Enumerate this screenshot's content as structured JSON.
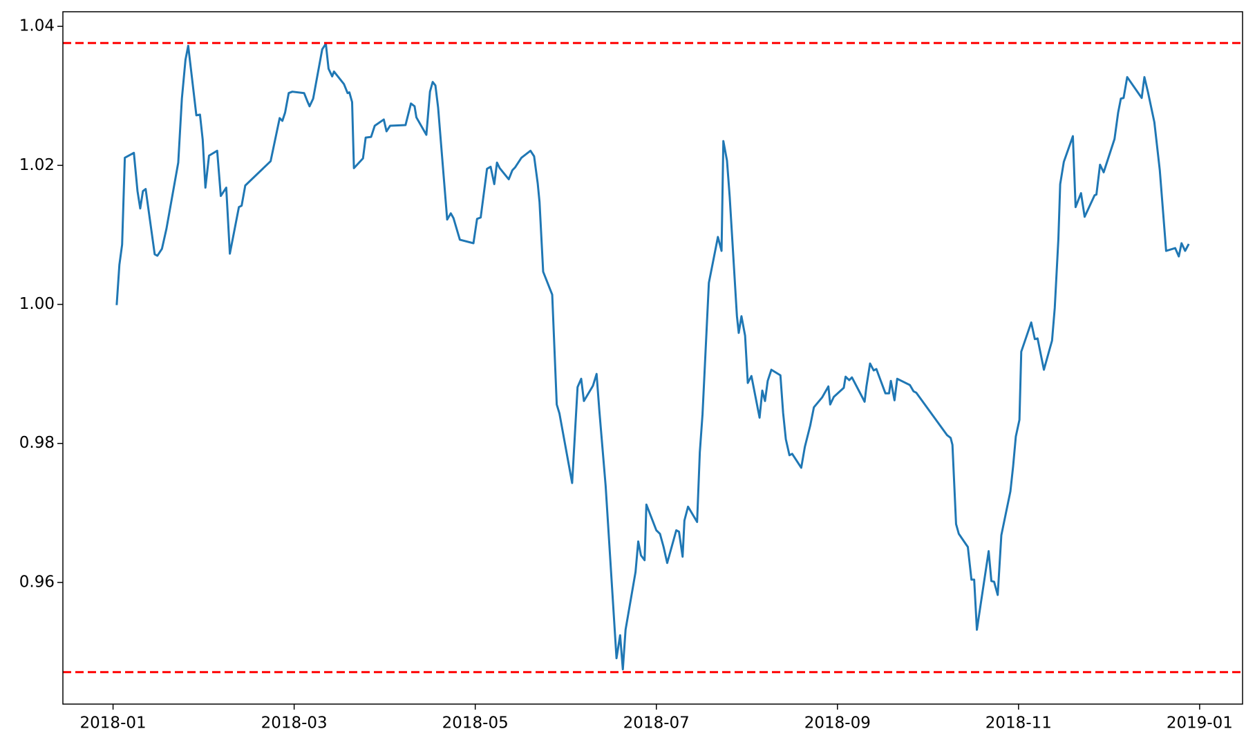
{
  "chart_data": {
    "type": "line",
    "x": [
      0.04,
      0.07,
      0.1,
      0.13,
      0.23,
      0.27,
      0.3,
      0.33,
      0.36,
      0.46,
      0.49,
      0.54,
      0.59,
      0.72,
      0.76,
      0.8,
      0.83,
      0.92,
      0.96,
      0.99,
      1.02,
      1.06,
      1.15,
      1.19,
      1.25,
      1.29,
      1.39,
      1.42,
      1.46,
      1.74,
      1.84,
      1.87,
      1.9,
      1.94,
      1.98,
      2.11,
      2.15,
      2.17,
      2.21,
      2.31,
      2.35,
      2.38,
      2.42,
      2.44,
      2.55,
      2.59,
      2.61,
      2.64,
      2.66,
      2.76,
      2.79,
      2.85,
      2.89,
      2.99,
      3.02,
      3.06,
      3.23,
      3.29,
      3.33,
      3.35,
      3.46,
      3.5,
      3.53,
      3.56,
      3.59,
      3.69,
      3.73,
      3.76,
      3.83,
      3.98,
      4.02,
      4.06,
      4.13,
      4.17,
      4.21,
      4.24,
      4.27,
      4.37,
      4.41,
      4.44,
      4.51,
      4.61,
      4.65,
      4.69,
      4.71,
      4.75,
      4.85,
      4.9,
      4.93,
      5.07,
      5.13,
      5.17,
      5.2,
      5.3,
      5.34,
      5.37,
      5.44,
      5.56,
      5.6,
      5.63,
      5.66,
      5.77,
      5.8,
      5.83,
      5.87,
      5.89,
      6.0,
      6.04,
      6.08,
      6.12,
      6.22,
      6.25,
      6.29,
      6.31,
      6.35,
      6.45,
      6.48,
      6.51,
      6.58,
      6.68,
      6.72,
      6.74,
      6.78,
      6.81,
      6.89,
      6.91,
      6.94,
      6.98,
      7.01,
      7.05,
      7.14,
      7.17,
      7.2,
      7.23,
      7.27,
      7.37,
      7.4,
      7.43,
      7.47,
      7.5,
      7.6,
      7.64,
      7.7,
      7.74,
      7.83,
      7.9,
      7.92,
      7.96,
      8.07,
      8.09,
      8.13,
      8.16,
      8.3,
      8.32,
      8.36,
      8.4,
      8.43,
      8.53,
      8.57,
      8.59,
      8.63,
      8.66,
      8.8,
      8.84,
      8.87,
      9.21,
      9.25,
      9.27,
      9.31,
      9.34,
      9.44,
      9.48,
      9.51,
      9.54,
      9.58,
      9.67,
      9.7,
      9.73,
      9.77,
      9.81,
      9.91,
      9.94,
      9.97,
      10.01,
      10.03,
      10.14,
      10.18,
      10.21,
      10.28,
      10.37,
      10.4,
      10.44,
      10.46,
      10.5,
      10.6,
      10.63,
      10.69,
      10.73,
      10.84,
      10.86,
      10.9,
      10.94,
      11.06,
      11.1,
      11.13,
      11.16,
      11.2,
      11.36,
      11.39,
      11.43,
      11.5,
      11.56,
      11.63,
      11.73,
      11.77,
      11.8,
      11.84,
      11.88
    ],
    "values": [
      0.9999,
      1.0057,
      1.0086,
      1.0211,
      1.0218,
      1.0163,
      1.0138,
      1.0163,
      1.0166,
      1.0072,
      1.007,
      1.008,
      1.0109,
      1.0204,
      1.0296,
      1.0352,
      1.0372,
      1.0272,
      1.0273,
      1.0237,
      1.0168,
      1.0214,
      1.0221,
      1.0156,
      1.0168,
      1.0073,
      1.014,
      1.0142,
      1.0171,
      1.0206,
      1.0268,
      1.0264,
      1.0276,
      1.0304,
      1.0306,
      1.0304,
      1.0291,
      1.0285,
      1.0296,
      1.0367,
      1.0375,
      1.0339,
      1.0328,
      1.0335,
      1.0317,
      1.0304,
      1.0305,
      1.0291,
      1.0196,
      1.021,
      1.024,
      1.0241,
      1.0257,
      1.0266,
      1.0249,
      1.0257,
      1.0258,
      1.0289,
      1.0285,
      1.0269,
      1.0244,
      1.0306,
      1.032,
      1.0315,
      1.0283,
      1.0122,
      1.0131,
      1.0124,
      1.0093,
      1.0088,
      1.0123,
      1.0125,
      1.0195,
      1.0198,
      1.0173,
      1.0204,
      1.0196,
      1.018,
      1.0193,
      1.0197,
      1.0211,
      1.0221,
      1.0213,
      1.0174,
      1.0147,
      1.0047,
      1.0014,
      0.9856,
      0.9843,
      0.9743,
      0.9881,
      0.9893,
      0.9861,
      0.9883,
      0.99,
      0.9848,
      0.9739,
      0.9491,
      0.9524,
      0.9475,
      0.9532,
      0.9615,
      0.9659,
      0.9639,
      0.9632,
      0.9712,
      0.9675,
      0.967,
      0.9651,
      0.9628,
      0.9675,
      0.9673,
      0.9637,
      0.9689,
      0.9709,
      0.9687,
      0.9787,
      0.9842,
      1.0031,
      1.0097,
      1.0077,
      1.0235,
      1.0207,
      1.0155,
      0.9983,
      0.9959,
      0.9983,
      0.9955,
      0.9887,
      0.9897,
      0.9837,
      0.9876,
      0.9861,
      0.989,
      0.9906,
      0.9898,
      0.9844,
      0.9806,
      0.9783,
      0.9785,
      0.9765,
      0.9795,
      0.9826,
      0.9852,
      0.9866,
      0.9882,
      0.9856,
      0.9867,
      0.988,
      0.9896,
      0.9891,
      0.9895,
      0.986,
      0.9882,
      0.9915,
      0.9905,
      0.9907,
      0.9872,
      0.9872,
      0.989,
      0.9862,
      0.9893,
      0.9884,
      0.9875,
      0.9873,
      0.9812,
      0.9808,
      0.9798,
      0.9684,
      0.967,
      0.9651,
      0.9604,
      0.9604,
      0.9532,
      0.9567,
      0.9645,
      0.9602,
      0.9601,
      0.9582,
      0.9668,
      0.9731,
      0.9767,
      0.981,
      0.9834,
      0.9932,
      0.9974,
      0.995,
      0.9951,
      0.9906,
      0.9948,
      0.9995,
      1.0094,
      1.0173,
      1.0205,
      1.0242,
      1.014,
      1.016,
      1.0126,
      1.0157,
      1.0158,
      1.0201,
      1.019,
      1.0238,
      1.0276,
      1.0296,
      1.0297,
      1.0327,
      1.0297,
      1.0327,
      1.0305,
      1.0262,
      1.0193,
      1.0077,
      1.0081,
      1.0069,
      1.0088,
      1.0077,
      1.0087
    ],
    "color": "#1f77b4",
    "hlines": [
      {
        "value": 1.0376,
        "color": "#ff0000",
        "style": "dashed"
      },
      {
        "value": 0.9471,
        "color": "#ff0000",
        "style": "dashed"
      }
    ],
    "xlim": [
      -0.554,
      12.474
    ],
    "xticks": [
      {
        "value": 0,
        "label": "2018-01"
      },
      {
        "value": 2,
        "label": "2018-03"
      },
      {
        "value": 4,
        "label": "2018-05"
      },
      {
        "value": 6,
        "label": "2018-07"
      },
      {
        "value": 8,
        "label": "2018-09"
      },
      {
        "value": 10,
        "label": "2018-11"
      },
      {
        "value": 12,
        "label": "2019-01"
      }
    ],
    "ylim": [
      0.9425,
      1.0421
    ],
    "yticks": [
      0.96,
      0.98,
      {
        "value": 1.0,
        "label": "1.00"
      },
      1.02,
      1.04
    ],
    "grid": false
  }
}
